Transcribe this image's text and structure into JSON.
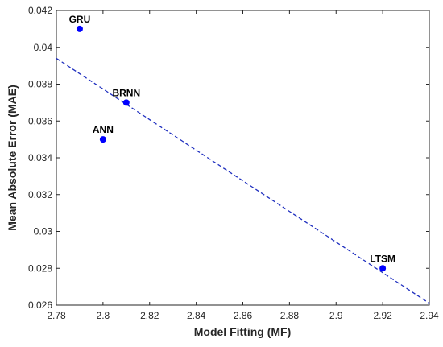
{
  "chart_data": {
    "type": "scatter",
    "title": "",
    "xlabel": "Model Fitting (MF)",
    "ylabel": "Mean Absolute Error (MAE)",
    "xlim": [
      2.78,
      2.94
    ],
    "ylim": [
      0.026,
      0.042
    ],
    "x_ticks": [
      "2.78",
      "2.8",
      "2.82",
      "2.84",
      "2.86",
      "2.88",
      "2.9",
      "2.92",
      "2.94"
    ],
    "y_ticks": [
      "0.026",
      "0.028",
      "0.03",
      "0.032",
      "0.034",
      "0.036",
      "0.038",
      "0.04",
      "0.042"
    ],
    "grid": false,
    "points": [
      {
        "label": "GRU",
        "x": 2.79,
        "y": 0.041
      },
      {
        "label": "BRNN",
        "x": 2.81,
        "y": 0.037
      },
      {
        "label": "ANN",
        "x": 2.8,
        "y": 0.035
      },
      {
        "label": "LTSM",
        "x": 2.92,
        "y": 0.028
      }
    ],
    "trendline": {
      "style": "dashed",
      "x": [
        2.78,
        2.94
      ],
      "y": [
        0.0394,
        0.0261
      ]
    },
    "colors": {
      "points": "#0000ff",
      "trendline": "#1f2fbf",
      "axis": "#262626"
    }
  }
}
